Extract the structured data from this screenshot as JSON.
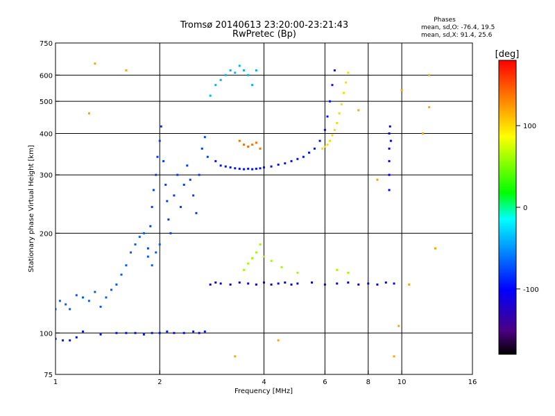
{
  "header": {
    "title_line1": "Tromsø 20140613 23:20:00-23:21:43",
    "title_line2": "RwPretec (Bp)",
    "phases_title": "Phases",
    "phases_o": "mean, sd,O: -76.4, 19.5",
    "phases_x": "mean, sd,X:  91.4, 25.6"
  },
  "colors": {
    "background": "#ffffff",
    "axes": "#000000",
    "colormap": [
      "#000000",
      "#4b0082",
      "#0000ff",
      "#00aaff",
      "#00ffff",
      "#00ff00",
      "#ffff00",
      "#ff8000",
      "#ff0000"
    ]
  },
  "chart_data": {
    "type": "scatter",
    "title": "Tromsø 20140613 23:20:00-23:21:43",
    "subtitle": "RwPretec (Bp)",
    "xlabel": "Frequency [MHz]",
    "ylabel": "Stationary phase Virtual Height [km]",
    "x_scale": "log",
    "y_scale": "log",
    "xlim": [
      1,
      16
    ],
    "ylim": [
      75,
      750
    ],
    "x_ticks": [
      1,
      2,
      4,
      6,
      8,
      10,
      16
    ],
    "x_tick_labels": [
      "1",
      "2",
      "4",
      "6",
      "8",
      "10",
      "16"
    ],
    "y_ticks": [
      75,
      100,
      200,
      300,
      400,
      500,
      600,
      750
    ],
    "y_tick_labels": [
      "75",
      "100",
      "200",
      "300",
      "400",
      "500",
      "600",
      "750"
    ],
    "grid_x": [
      2,
      4,
      6,
      8,
      10
    ],
    "grid_y": [
      100,
      200,
      300,
      400,
      500,
      600
    ],
    "colorbar": {
      "label": "[deg]",
      "range": [
        -180,
        180
      ],
      "ticks": [
        100,
        0,
        -100
      ],
      "tick_labels": [
        "100",
        "0",
        "-100"
      ]
    },
    "series": [
      {
        "trace": "low_layer_100km",
        "phase": -95,
        "points": [
          [
            1.0,
            96
          ],
          [
            1.05,
            95
          ],
          [
            1.1,
            95
          ],
          [
            1.15,
            97
          ],
          [
            1.2,
            101
          ],
          [
            1.35,
            99
          ],
          [
            1.5,
            100
          ],
          [
            1.6,
            100
          ],
          [
            1.7,
            100
          ],
          [
            1.8,
            99
          ],
          [
            1.9,
            100
          ],
          [
            2.0,
            100
          ],
          [
            2.1,
            101
          ],
          [
            2.2,
            100
          ],
          [
            2.35,
            100
          ],
          [
            2.5,
            101
          ],
          [
            2.6,
            100
          ],
          [
            2.7,
            101
          ]
        ]
      },
      {
        "trace": "low_frequency_rise",
        "phase": -70,
        "points": [
          [
            1.0,
            118
          ],
          [
            1.03,
            125
          ],
          [
            1.07,
            122
          ],
          [
            1.1,
            118
          ],
          [
            1.15,
            130
          ],
          [
            1.2,
            128
          ],
          [
            1.25,
            125
          ],
          [
            1.3,
            133
          ],
          [
            1.35,
            120
          ],
          [
            1.4,
            128
          ],
          [
            1.45,
            135
          ],
          [
            1.5,
            140
          ],
          [
            1.55,
            150
          ],
          [
            1.6,
            160
          ],
          [
            1.65,
            175
          ],
          [
            1.7,
            185
          ],
          [
            1.75,
            195
          ],
          [
            1.8,
            200
          ],
          [
            1.85,
            170
          ],
          [
            1.9,
            160
          ],
          [
            1.95,
            175
          ],
          [
            2.0,
            185
          ]
        ]
      },
      {
        "trace": "column_2MHz",
        "phase": -80,
        "points": [
          [
            1.85,
            180
          ],
          [
            1.88,
            210
          ],
          [
            1.9,
            240
          ],
          [
            1.92,
            270
          ],
          [
            1.95,
            300
          ],
          [
            1.97,
            340
          ],
          [
            2.0,
            380
          ],
          [
            2.02,
            420
          ],
          [
            2.05,
            330
          ],
          [
            2.08,
            280
          ],
          [
            2.1,
            250
          ],
          [
            2.12,
            220
          ],
          [
            2.15,
            200
          ],
          [
            2.2,
            260
          ],
          [
            2.25,
            300
          ],
          [
            2.3,
            240
          ],
          [
            2.35,
            280
          ],
          [
            2.4,
            320
          ],
          [
            2.45,
            290
          ],
          [
            2.5,
            260
          ],
          [
            2.55,
            230
          ],
          [
            2.6,
            300
          ],
          [
            2.65,
            360
          ],
          [
            2.7,
            390
          ],
          [
            2.75,
            340
          ]
        ]
      },
      {
        "trace": "F_trace_low",
        "phase": -95,
        "points": [
          [
            2.9,
            330
          ],
          [
            3.0,
            320
          ],
          [
            3.1,
            318
          ],
          [
            3.2,
            316
          ],
          [
            3.3,
            314
          ],
          [
            3.4,
            313
          ],
          [
            3.5,
            312
          ],
          [
            3.6,
            313
          ],
          [
            3.7,
            312
          ],
          [
            3.8,
            313
          ],
          [
            3.9,
            314
          ],
          [
            4.0,
            316
          ],
          [
            4.2,
            318
          ],
          [
            4.4,
            322
          ],
          [
            4.6,
            325
          ],
          [
            4.8,
            330
          ],
          [
            5.0,
            335
          ],
          [
            5.2,
            340
          ],
          [
            5.4,
            350
          ],
          [
            5.6,
            360
          ],
          [
            5.8,
            380
          ],
          [
            6.0,
            410
          ],
          [
            6.1,
            450
          ],
          [
            6.2,
            500
          ],
          [
            6.3,
            560
          ],
          [
            6.4,
            620
          ]
        ]
      },
      {
        "trace": "F_trace_X",
        "phase": 100,
        "points": [
          [
            5.9,
            360
          ],
          [
            6.0,
            365
          ],
          [
            6.1,
            370
          ],
          [
            6.2,
            380
          ],
          [
            6.3,
            395
          ],
          [
            6.4,
            410
          ],
          [
            6.5,
            430
          ],
          [
            6.6,
            460
          ],
          [
            6.7,
            490
          ],
          [
            6.8,
            530
          ],
          [
            6.9,
            570
          ],
          [
            7.0,
            610
          ]
        ]
      },
      {
        "trace": "F_trace_mid",
        "phase": 140,
        "points": [
          [
            3.4,
            380
          ],
          [
            3.5,
            370
          ],
          [
            3.6,
            365
          ],
          [
            3.7,
            370
          ],
          [
            3.8,
            375
          ],
          [
            3.9,
            360
          ]
        ]
      },
      {
        "trace": "upper_patch",
        "phase": -40,
        "points": [
          [
            2.8,
            520
          ],
          [
            2.9,
            560
          ],
          [
            3.0,
            580
          ],
          [
            3.1,
            600
          ],
          [
            3.2,
            620
          ],
          [
            3.3,
            610
          ],
          [
            3.4,
            640
          ],
          [
            3.5,
            620
          ],
          [
            3.6,
            600
          ],
          [
            3.7,
            560
          ],
          [
            3.8,
            620
          ]
        ]
      },
      {
        "trace": "E_layer_150km",
        "phase": -110,
        "points": [
          [
            2.8,
            140
          ],
          [
            2.9,
            142
          ],
          [
            3.0,
            141
          ],
          [
            3.2,
            140
          ],
          [
            3.4,
            142
          ],
          [
            3.6,
            141
          ],
          [
            3.8,
            140
          ],
          [
            4.0,
            142
          ],
          [
            4.2,
            140
          ],
          [
            4.4,
            141
          ],
          [
            4.6,
            142
          ],
          [
            4.8,
            140
          ],
          [
            5.0,
            141
          ],
          [
            5.5,
            142
          ],
          [
            6.0,
            140
          ],
          [
            6.5,
            141
          ],
          [
            7.0,
            142
          ],
          [
            7.5,
            140
          ],
          [
            8.0,
            141
          ],
          [
            8.5,
            140
          ],
          [
            9.0,
            142
          ],
          [
            9.5,
            141
          ]
        ]
      },
      {
        "trace": "mid_scatter_160",
        "phase": 60,
        "points": [
          [
            3.5,
            155
          ],
          [
            3.6,
            162
          ],
          [
            3.7,
            168
          ],
          [
            3.8,
            175
          ],
          [
            3.9,
            185
          ],
          [
            4.0,
            170
          ],
          [
            4.2,
            165
          ],
          [
            4.5,
            158
          ],
          [
            5.0,
            152
          ],
          [
            6.5,
            155
          ],
          [
            7.0,
            152
          ]
        ]
      },
      {
        "trace": "vertical_streak_9MHz",
        "phase": -100,
        "points": [
          [
            9.2,
            270
          ],
          [
            9.2,
            300
          ],
          [
            9.2,
            330
          ],
          [
            9.2,
            360
          ],
          [
            9.2,
            400
          ],
          [
            9.25,
            420
          ],
          [
            9.3,
            380
          ]
        ]
      },
      {
        "trace": "sparse_points",
        "phase": 120,
        "points": [
          [
            1.25,
            460
          ],
          [
            1.3,
            650
          ],
          [
            1.6,
            620
          ],
          [
            12.0,
            600
          ],
          [
            12.0,
            480
          ],
          [
            11.5,
            400
          ],
          [
            10.0,
            540
          ],
          [
            8.5,
            290
          ],
          [
            7.5,
            470
          ],
          [
            10.5,
            140
          ],
          [
            12.5,
            180
          ],
          [
            9.5,
            85
          ],
          [
            4.4,
            95
          ],
          [
            3.3,
            85
          ],
          [
            9.8,
            105
          ]
        ]
      }
    ]
  }
}
